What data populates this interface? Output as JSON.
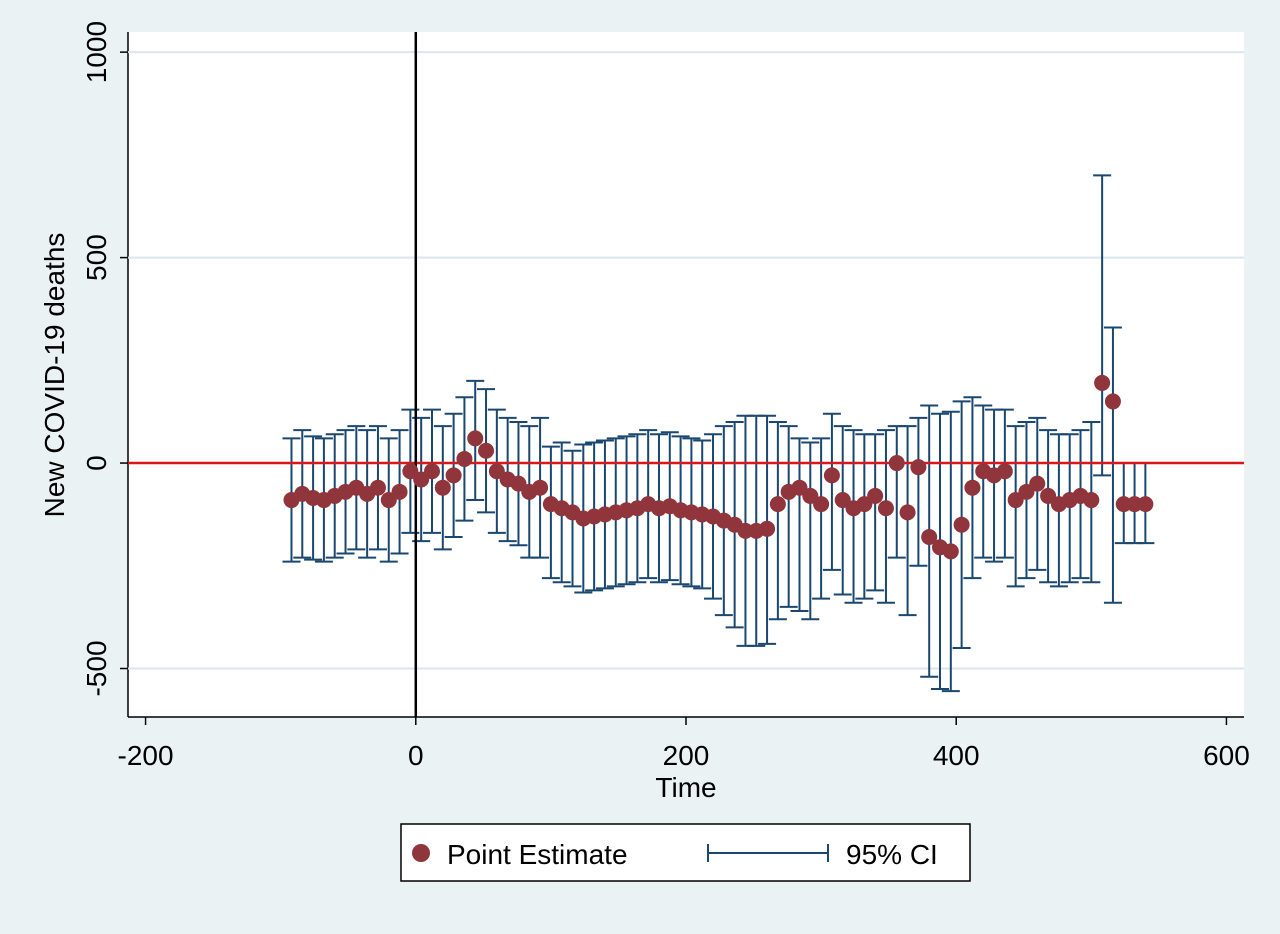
{
  "chart_data": {
    "type": "errorbar-scatter",
    "xlabel": "Time",
    "ylabel": "New COVID-19 deaths",
    "x": [
      -92,
      -84,
      -76,
      -68,
      -60,
      -52,
      -44,
      -36,
      -28,
      -20,
      -12,
      -4,
      4,
      12,
      20,
      28,
      36,
      44,
      52,
      60,
      68,
      76,
      84,
      92,
      100,
      108,
      116,
      124,
      132,
      140,
      148,
      156,
      164,
      172,
      180,
      188,
      196,
      204,
      212,
      220,
      228,
      236,
      244,
      252,
      260,
      268,
      276,
      284,
      292,
      300,
      308,
      316,
      324,
      332,
      340,
      348,
      356,
      364,
      372,
      380,
      388,
      396,
      404,
      412,
      420,
      428,
      436,
      444,
      452,
      460,
      468,
      476,
      484,
      492,
      500,
      508,
      516,
      524,
      532,
      540
    ],
    "series": [
      {
        "name": "Point Estimate",
        "color": "#90353b",
        "values": [
          -90,
          -75,
          -85,
          -90,
          -80,
          -70,
          -60,
          -75,
          -60,
          -90,
          -70,
          -20,
          -40,
          -20,
          -60,
          -30,
          10,
          60,
          30,
          -20,
          -40,
          -50,
          -70,
          -60,
          -100,
          -110,
          -120,
          -135,
          -130,
          -125,
          -120,
          -115,
          -110,
          -100,
          -110,
          -105,
          -115,
          -120,
          -125,
          -130,
          -140,
          -150,
          -165,
          -165,
          -160,
          -100,
          -70,
          -60,
          -80,
          -100,
          -30,
          -90,
          -110,
          -100,
          -80,
          -110,
          0,
          -120,
          -10,
          -180,
          -205,
          -215,
          -150,
          -60,
          -20,
          -30,
          -20,
          -90,
          -70,
          -50,
          -80,
          -100,
          -90,
          -80,
          -90,
          195,
          150,
          -100,
          -100,
          -100
        ]
      }
    ],
    "ci": {
      "name": "95% CI",
      "color": "#1a476f",
      "lower": [
        -240,
        -230,
        -235,
        -240,
        -230,
        -220,
        -210,
        -230,
        -210,
        -240,
        -220,
        -170,
        -190,
        -170,
        -210,
        -180,
        -140,
        -90,
        -120,
        -170,
        -190,
        -200,
        -230,
        -230,
        -280,
        -290,
        -300,
        -315,
        -310,
        -305,
        -300,
        -295,
        -290,
        -280,
        -290,
        -285,
        -295,
        -300,
        -305,
        -330,
        -370,
        -400,
        -445,
        -445,
        -440,
        -380,
        -350,
        -360,
        -380,
        -330,
        -260,
        -320,
        -340,
        -330,
        -310,
        -340,
        -230,
        -370,
        -250,
        -520,
        -550,
        -555,
        -450,
        -280,
        -230,
        -240,
        -230,
        -300,
        -280,
        -260,
        -290,
        -300,
        -290,
        -280,
        -290,
        -30,
        -340,
        -195,
        -195,
        -195
      ],
      "upper": [
        60,
        80,
        65,
        60,
        70,
        80,
        90,
        80,
        90,
        60,
        80,
        130,
        110,
        130,
        90,
        120,
        160,
        200,
        180,
        130,
        110,
        100,
        90,
        110,
        40,
        50,
        30,
        45,
        50,
        55,
        60,
        65,
        70,
        80,
        70,
        75,
        65,
        60,
        55,
        70,
        90,
        100,
        115,
        115,
        115,
        100,
        90,
        60,
        50,
        60,
        120,
        90,
        80,
        70,
        70,
        80,
        90,
        90,
        110,
        140,
        120,
        125,
        150,
        160,
        140,
        130,
        130,
        90,
        100,
        110,
        80,
        70,
        70,
        80,
        100,
        700,
        330,
        0,
        0,
        0
      ]
    },
    "xlim": [
      -213,
      613
    ],
    "ylim": [
      -618,
      1049
    ],
    "xticks": [
      -200,
      0,
      200,
      400,
      600
    ],
    "yticks": [
      -500,
      0,
      500,
      1000
    ],
    "grid": true,
    "xline": {
      "value": 0,
      "color": "#000000"
    },
    "yline": {
      "value": 0,
      "color": "#d7191c"
    },
    "legend": "bottom"
  }
}
